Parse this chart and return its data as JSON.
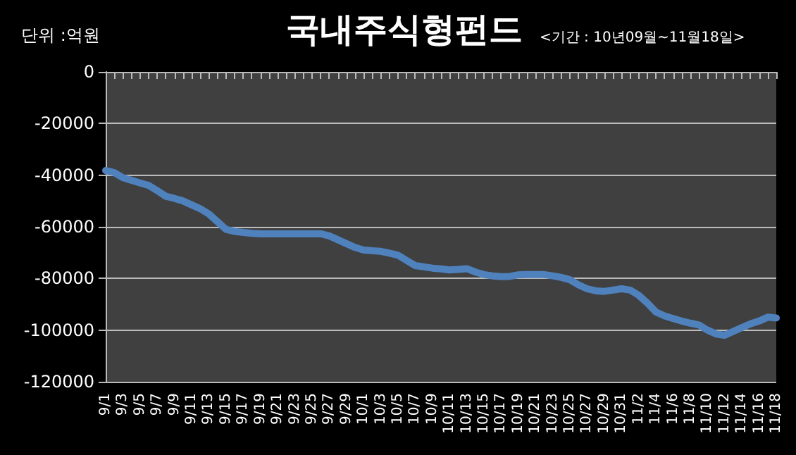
{
  "chart_data": {
    "type": "line",
    "title": "국내주식형펀드",
    "subtitle": "<기간 : 10년09월~11월18일>",
    "ylabel": "단위 :억원",
    "categories": [
      "9/1",
      null,
      "9/3",
      null,
      "9/5",
      null,
      "9/7",
      null,
      "9/9",
      null,
      "9/11",
      null,
      "9/13",
      null,
      "9/15",
      null,
      "9/17",
      null,
      "9/19",
      null,
      "9/21",
      null,
      "9/23",
      null,
      "9/25",
      null,
      "9/27",
      null,
      "9/29",
      null,
      "10/1",
      null,
      "10/3",
      null,
      "10/5",
      null,
      "10/7",
      null,
      "10/9",
      null,
      "10/11",
      null,
      "10/13",
      null,
      "10/15",
      null,
      "10/17",
      null,
      "10/19",
      null,
      "10/21",
      null,
      "10/23",
      null,
      "10/25",
      null,
      "10/27",
      null,
      "10/29",
      null,
      "10/31",
      null,
      "11/2",
      null,
      "11/4",
      null,
      "11/6",
      null,
      "11/8",
      null,
      "11/10",
      null,
      "11/12",
      null,
      "11/14",
      null,
      "11/16",
      null,
      "11/18"
    ],
    "series": [
      {
        "color": "#4f81bd",
        "values": [
          -38200,
          -39000,
          -41000,
          -42000,
          -43000,
          -44000,
          -46000,
          -48200,
          -49000,
          -50000,
          -51500,
          -53000,
          -55000,
          -58000,
          -61000,
          -61800,
          -62200,
          -62500,
          -62700,
          -62700,
          -62700,
          -62700,
          -62700,
          -62700,
          -62700,
          -62700,
          -63500,
          -65000,
          -66500,
          -68000,
          -69000,
          -69300,
          -69500,
          -70200,
          -71000,
          -73000,
          -75000,
          -75500,
          -76000,
          -76300,
          -76700,
          -76500,
          -76200,
          -77500,
          -78500,
          -79000,
          -79300,
          -79200,
          -78600,
          -78500,
          -78500,
          -78500,
          -79000,
          -79600,
          -80500,
          -82500,
          -84000,
          -84800,
          -85000,
          -84500,
          -84000,
          -84500,
          -86500,
          -89500,
          -93000,
          -94500,
          -95500,
          -96500,
          -97300,
          -98000,
          -100000,
          -101500,
          -102000,
          -100500,
          -99000,
          -97600,
          -96500,
          -95000,
          -95300
        ]
      }
    ],
    "ylim": [
      -120000,
      0
    ],
    "yticks": [
      -120000,
      -100000,
      -80000,
      -60000,
      -40000,
      -20000,
      0
    ],
    "grid": "y",
    "marker": "none",
    "line_style": "solid"
  }
}
